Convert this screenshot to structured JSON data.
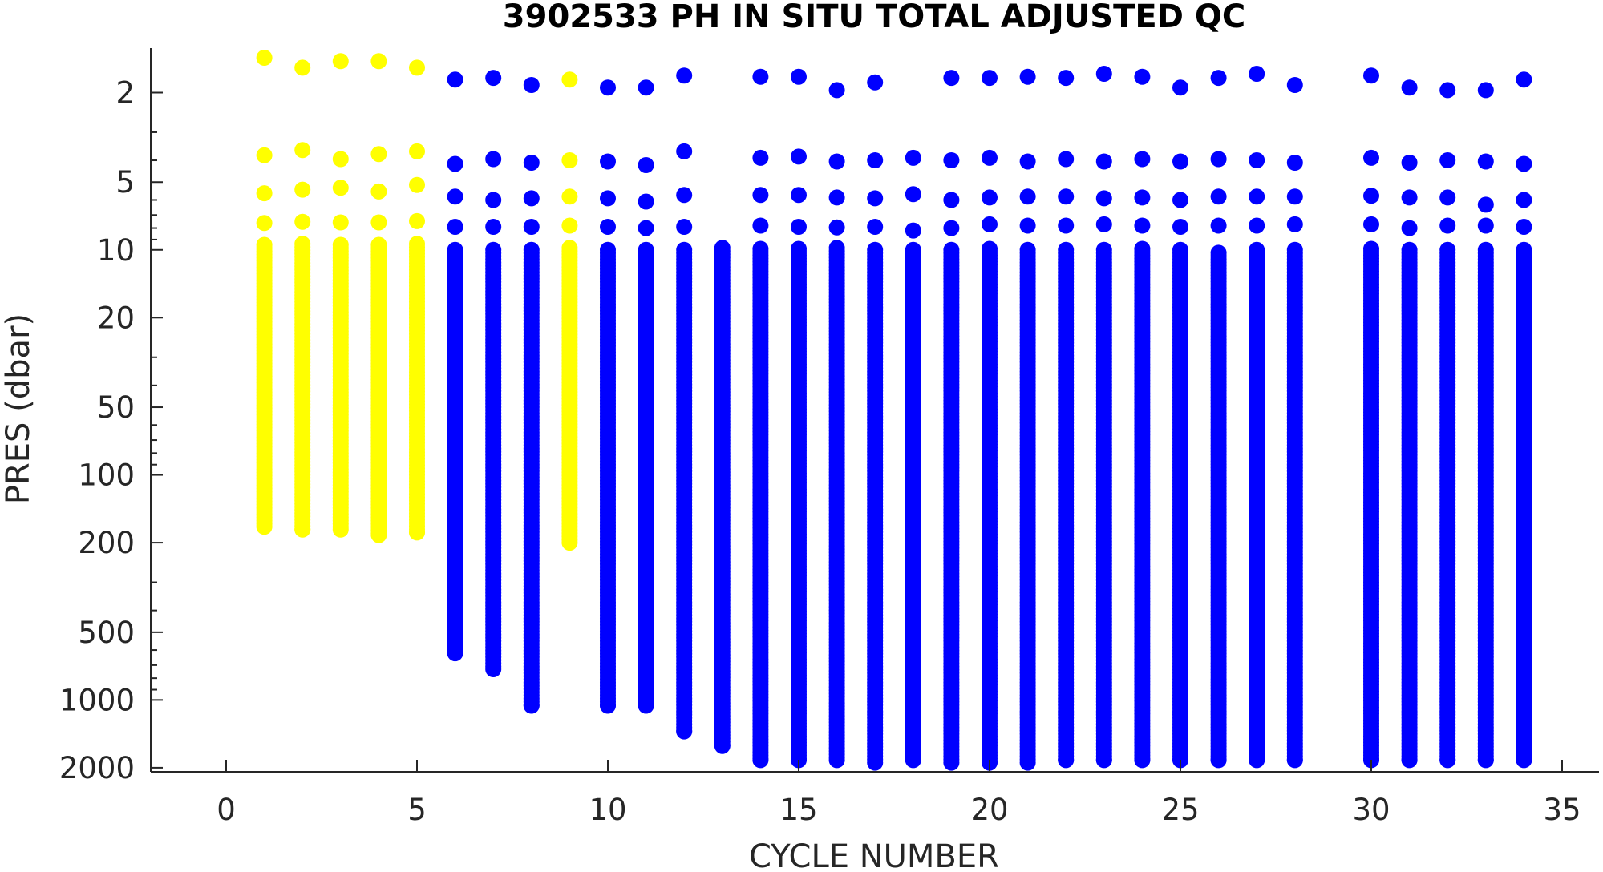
{
  "chart_data": {
    "type": "scatter",
    "title": "3902533  PH IN SITU TOTAL ADJUSTED QC",
    "xlabel": "CYCLE NUMBER",
    "ylabel": "PRES (dbar)",
    "xlim": [
      -2,
      36
    ],
    "ylim": [
      2200,
      1.3
    ],
    "y_scale": "log",
    "y_reversed": true,
    "x_ticks": [
      0,
      5,
      10,
      15,
      20,
      25,
      30,
      35
    ],
    "y_ticks": [
      2,
      5,
      10,
      20,
      50,
      100,
      200,
      500,
      1000,
      2000
    ],
    "y_tick_labels": [
      "2",
      "5",
      "10",
      "20",
      "50",
      "100",
      "200",
      "500",
      "1000",
      "2000"
    ],
    "grid": false,
    "legend": "none",
    "colors": {
      "qc_probably_bad": "#ffff00",
      "qc_good": "#0000ff"
    },
    "series": [
      {
        "color": "#ffff00",
        "profiles": [
          {
            "cycle": 1,
            "first_pres": [
              1.4,
              3.8,
              5.6,
              7.6
            ],
            "continuous_from": 9.5,
            "max_pres": 170
          },
          {
            "cycle": 2,
            "first_pres": [
              1.55,
              3.6,
              5.4,
              7.5
            ],
            "continuous_from": 9.4,
            "max_pres": 175
          },
          {
            "cycle": 3,
            "first_pres": [
              1.45,
              3.95,
              5.3,
              7.55
            ],
            "continuous_from": 9.5,
            "max_pres": 175
          },
          {
            "cycle": 4,
            "first_pres": [
              1.45,
              3.75,
              5.5,
              7.55
            ],
            "continuous_from": 9.5,
            "max_pres": 185
          },
          {
            "cycle": 5,
            "first_pres": [
              1.55,
              3.65,
              5.15,
              7.45
            ],
            "continuous_from": 9.4,
            "max_pres": 180
          },
          {
            "cycle": 9,
            "first_pres": [
              1.75,
              4.0,
              5.8,
              7.8
            ],
            "continuous_from": 9.8,
            "max_pres": 200
          }
        ]
      },
      {
        "color": "#0000ff",
        "profiles": [
          {
            "cycle": 6,
            "first_pres": [
              1.75,
              4.15,
              5.8,
              7.9
            ],
            "continuous_from": 10,
            "max_pres": 620
          },
          {
            "cycle": 7,
            "first_pres": [
              1.72,
              3.95,
              6.0,
              7.9
            ],
            "continuous_from": 10,
            "max_pres": 730
          },
          {
            "cycle": 8,
            "first_pres": [
              1.85,
              4.1,
              5.9,
              7.9
            ],
            "continuous_from": 10,
            "max_pres": 1060
          },
          {
            "cycle": 10,
            "first_pres": [
              1.9,
              4.05,
              5.9,
              7.9
            ],
            "continuous_from": 10,
            "max_pres": 1060
          },
          {
            "cycle": 11,
            "first_pres": [
              1.9,
              4.2,
              6.1,
              8.0
            ],
            "continuous_from": 10,
            "max_pres": 1060
          },
          {
            "cycle": 12,
            "first_pres": [
              1.68,
              3.65,
              5.7,
              7.9
            ],
            "continuous_from": 10,
            "max_pres": 1380
          },
          {
            "cycle": 13,
            "first_pres": [],
            "continuous_from": 9.8,
            "max_pres": 1600
          },
          {
            "cycle": 14,
            "first_pres": [
              1.7,
              3.9,
              5.7,
              7.8
            ],
            "continuous_from": 9.9,
            "max_pres": 1850
          },
          {
            "cycle": 15,
            "first_pres": [
              1.7,
              3.85,
              5.7,
              7.9
            ],
            "continuous_from": 9.9,
            "max_pres": 1850
          },
          {
            "cycle": 16,
            "first_pres": [
              1.95,
              4.05,
              5.85,
              7.95
            ],
            "continuous_from": 9.8,
            "max_pres": 1850
          },
          {
            "cycle": 17,
            "first_pres": [
              1.8,
              4.0,
              5.9,
              7.9
            ],
            "continuous_from": 10,
            "max_pres": 1900
          },
          {
            "cycle": 18,
            "first_pres": [],
            "continuous_from": 3.9,
            "max_pres": 1850,
            "sparse_to": 10
          },
          {
            "cycle": 19,
            "first_pres": [
              1.72,
              4.0,
              6.0,
              8.0
            ],
            "continuous_from": 10,
            "max_pres": 1900
          },
          {
            "cycle": 20,
            "first_pres": [
              1.72,
              3.9,
              5.85,
              7.7
            ],
            "continuous_from": 9.9,
            "max_pres": 1900
          },
          {
            "cycle": 21,
            "first_pres": [
              1.7,
              4.05,
              5.8,
              7.8
            ],
            "continuous_from": 10,
            "max_pres": 1900
          },
          {
            "cycle": 22,
            "first_pres": [
              1.72,
              3.95,
              5.8,
              7.8
            ],
            "continuous_from": 10,
            "max_pres": 1850
          },
          {
            "cycle": 23,
            "first_pres": [
              1.65,
              4.05,
              5.9,
              7.7
            ],
            "continuous_from": 10,
            "max_pres": 1850
          },
          {
            "cycle": 24,
            "first_pres": [
              1.7,
              3.95,
              5.85,
              7.8
            ],
            "continuous_from": 9.9,
            "max_pres": 1850
          },
          {
            "cycle": 25,
            "first_pres": [
              1.9,
              4.05,
              6.0,
              7.9
            ],
            "continuous_from": 10,
            "max_pres": 1850
          },
          {
            "cycle": 26,
            "first_pres": [
              1.72,
              3.95,
              5.8,
              7.8
            ],
            "continuous_from": 10.3,
            "max_pres": 1850
          },
          {
            "cycle": 27,
            "first_pres": [
              1.65,
              4.0,
              5.8,
              7.8
            ],
            "continuous_from": 10,
            "max_pres": 1850
          },
          {
            "cycle": 28,
            "first_pres": [
              1.85,
              4.1,
              5.8,
              7.7
            ],
            "continuous_from": 10,
            "max_pres": 1850
          },
          {
            "cycle": 30,
            "first_pres": [
              1.68,
              3.9,
              5.75,
              7.7
            ],
            "continuous_from": 9.9,
            "max_pres": 1850
          },
          {
            "cycle": 31,
            "first_pres": [
              1.9,
              4.1,
              5.85,
              8.0
            ],
            "continuous_from": 10,
            "max_pres": 1850
          },
          {
            "cycle": 32,
            "first_pres": [
              1.95,
              4.0,
              5.85,
              7.8
            ],
            "continuous_from": 10,
            "max_pres": 1850
          },
          {
            "cycle": 33,
            "first_pres": [
              1.95,
              4.05,
              6.3,
              7.8
            ],
            "continuous_from": 10,
            "max_pres": 1850
          },
          {
            "cycle": 34,
            "first_pres": [
              1.75,
              4.15,
              6.0,
              7.9
            ],
            "continuous_from": 10,
            "max_pres": 1850
          }
        ]
      }
    ]
  }
}
